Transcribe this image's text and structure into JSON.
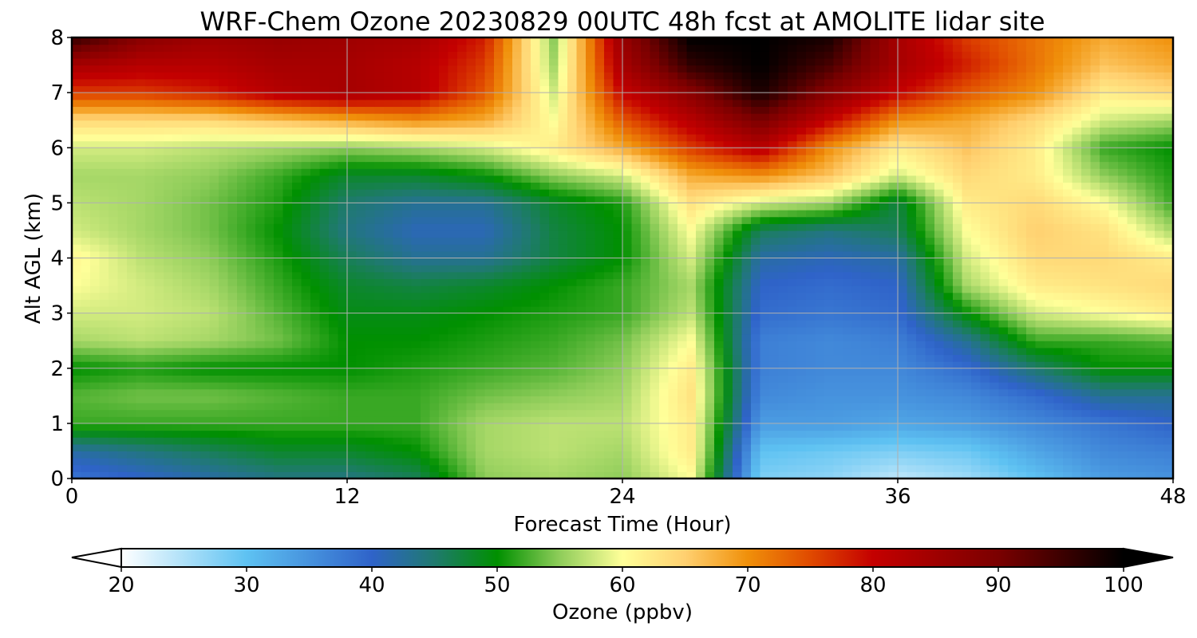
{
  "chart_data": {
    "type": "heatmap",
    "title": "WRF-Chem Ozone  20230829 00UTC 48h fcst at AMOLITE lidar site",
    "xlabel": "Forecast Time (Hour)",
    "ylabel": "Alt AGL (km)",
    "xlim": [
      0,
      48
    ],
    "ylim": [
      0,
      8
    ],
    "xticks": [
      0,
      12,
      24,
      36,
      48
    ],
    "yticks": [
      0,
      1,
      2,
      3,
      4,
      5,
      6,
      7,
      8
    ],
    "grid": true,
    "colorbar": {
      "label": "Ozone  (ppbv)",
      "vmin": 20,
      "vmax": 100,
      "ticks": [
        20,
        30,
        40,
        50,
        60,
        70,
        80,
        90,
        100
      ],
      "extend": "both",
      "orientation": "horizontal",
      "color_stops": [
        {
          "v": 20,
          "c": "#ffffff"
        },
        {
          "v": 30,
          "c": "#5ec2f2"
        },
        {
          "v": 40,
          "c": "#2f63c9"
        },
        {
          "v": 45,
          "c": "#1f7a6e"
        },
        {
          "v": 50,
          "c": "#009000"
        },
        {
          "v": 55,
          "c": "#8fcd5a"
        },
        {
          "v": 60,
          "c": "#ffff99"
        },
        {
          "v": 65,
          "c": "#ffd070"
        },
        {
          "v": 70,
          "c": "#f0900a"
        },
        {
          "v": 75,
          "c": "#e04a00"
        },
        {
          "v": 80,
          "c": "#c40000"
        },
        {
          "v": 90,
          "c": "#7a0000"
        },
        {
          "v": 100,
          "c": "#000000"
        }
      ]
    },
    "z_units": "ppbv",
    "x_hours": [
      0,
      3,
      6,
      9,
      12,
      15,
      18,
      21,
      24,
      27,
      30,
      33,
      36,
      39,
      42,
      45,
      48
    ],
    "y_km": [
      0,
      0.5,
      1,
      1.5,
      2,
      2.5,
      3,
      3.5,
      4,
      4.5,
      5,
      5.5,
      6,
      6.5,
      7,
      7.5,
      8
    ],
    "z_ppbv": [
      [
        38,
        40,
        42,
        44,
        44,
        46,
        55,
        56,
        55,
        60,
        28,
        27,
        24,
        26,
        30,
        34,
        35
      ],
      [
        42,
        44,
        46,
        48,
        48,
        50,
        56,
        57,
        56,
        62,
        30,
        29,
        28,
        29,
        33,
        36,
        37
      ],
      [
        52,
        52,
        52,
        52,
        52,
        52,
        56,
        57,
        57,
        62,
        34,
        34,
        33,
        34,
        36,
        38,
        40
      ],
      [
        53,
        54,
        54,
        53,
        52,
        52,
        54,
        55,
        56,
        63,
        36,
        35,
        35,
        36,
        39,
        43,
        43
      ],
      [
        50,
        51,
        50,
        50,
        50,
        51,
        52,
        53,
        55,
        62,
        37,
        36,
        36,
        39,
        45,
        50,
        50
      ],
      [
        56,
        57,
        56,
        54,
        50,
        50,
        51,
        52,
        54,
        60,
        37,
        36,
        37,
        43,
        52,
        52,
        53
      ],
      [
        58,
        58,
        57,
        53,
        49,
        49,
        50,
        51,
        52,
        57,
        39,
        38,
        39,
        50,
        58,
        60,
        62
      ],
      [
        60,
        58,
        56,
        52,
        48,
        47,
        48,
        50,
        52,
        56,
        40,
        39,
        40,
        56,
        62,
        63,
        64
      ],
      [
        61,
        57,
        55,
        51,
        46,
        43,
        43,
        47,
        50,
        58,
        42,
        41,
        42,
        58,
        64,
        64,
        62
      ],
      [
        58,
        56,
        54,
        50,
        44,
        41,
        41,
        47,
        50,
        60,
        46,
        44,
        46,
        60,
        65,
        63,
        56
      ],
      [
        57,
        56,
        54,
        51,
        45,
        43,
        43,
        48,
        51,
        63,
        58,
        56,
        47,
        62,
        64,
        60,
        52
      ],
      [
        56,
        56,
        55,
        52,
        48,
        48,
        50,
        55,
        58,
        68,
        70,
        66,
        58,
        64,
        62,
        55,
        51
      ],
      [
        58,
        58,
        57,
        56,
        55,
        56,
        58,
        62,
        68,
        76,
        82,
        70,
        62,
        66,
        62,
        52,
        50
      ],
      [
        64,
        64,
        64,
        66,
        68,
        70,
        68,
        60,
        74,
        82,
        90,
        80,
        70,
        68,
        64,
        58,
        56
      ],
      [
        76,
        76,
        78,
        82,
        84,
        82,
        74,
        58,
        80,
        88,
        98,
        88,
        80,
        74,
        70,
        62,
        64
      ],
      [
        84,
        82,
        82,
        84,
        84,
        82,
        76,
        56,
        84,
        96,
        100,
        94,
        84,
        78,
        72,
        66,
        68
      ],
      [
        96,
        88,
        85,
        86,
        85,
        84,
        78,
        55,
        86,
        100,
        100,
        98,
        84,
        76,
        72,
        68,
        70
      ]
    ]
  }
}
